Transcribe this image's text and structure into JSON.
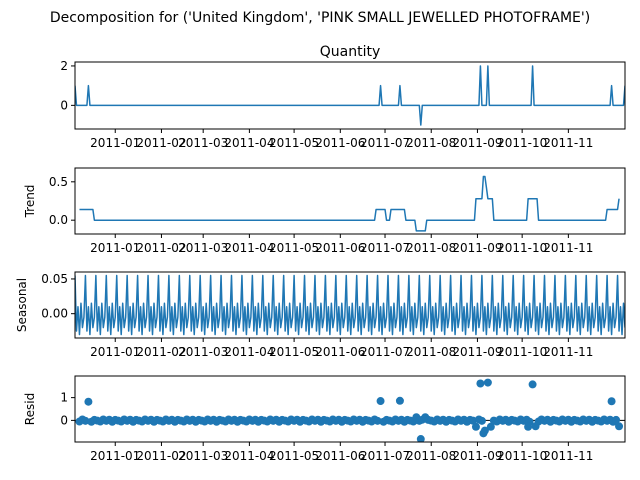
{
  "figure": {
    "suptitle": "Decomposition for ('United Kingdom', 'PINK SMALL JEWELLED PHOTOFRAME')"
  },
  "chart_data": [
    {
      "type": "line",
      "panel": "observed",
      "title": "Quantity",
      "xlabel": "",
      "ylabel": "",
      "x_range": [
        "2010-12-05",
        "2011-12-09"
      ],
      "x_ticks": [
        "2011-01",
        "2011-02",
        "2011-03",
        "2011-04",
        "2011-05",
        "2011-06",
        "2011-07",
        "2011-08",
        "2011-09",
        "2011-10",
        "2011-11"
      ],
      "ylim": [
        -1.2,
        2.2
      ],
      "y_ticks": [
        "0",
        "2"
      ],
      "points": [
        {
          "x": "2010-12-05",
          "y": 1
        },
        {
          "x": "2010-12-06",
          "y": 0
        },
        {
          "x": "2010-12-13",
          "y": 0
        },
        {
          "x": "2010-12-14",
          "y": 1
        },
        {
          "x": "2010-12-15",
          "y": 0
        },
        {
          "x": "2011-06-27",
          "y": 0
        },
        {
          "x": "2011-06-28",
          "y": 1
        },
        {
          "x": "2011-06-29",
          "y": 0
        },
        {
          "x": "2011-07-10",
          "y": 0
        },
        {
          "x": "2011-07-11",
          "y": 1
        },
        {
          "x": "2011-07-12",
          "y": 0
        },
        {
          "x": "2011-07-24",
          "y": 0
        },
        {
          "x": "2011-07-25",
          "y": -1
        },
        {
          "x": "2011-07-26",
          "y": 0
        },
        {
          "x": "2011-09-02",
          "y": 0
        },
        {
          "x": "2011-09-03",
          "y": 2
        },
        {
          "x": "2011-09-04",
          "y": 0
        },
        {
          "x": "2011-09-07",
          "y": 0
        },
        {
          "x": "2011-09-08",
          "y": 2
        },
        {
          "x": "2011-09-09",
          "y": 0
        },
        {
          "x": "2011-10-07",
          "y": 0
        },
        {
          "x": "2011-10-08",
          "y": 2
        },
        {
          "x": "2011-10-09",
          "y": 0
        },
        {
          "x": "2011-11-29",
          "y": 0
        },
        {
          "x": "2011-11-30",
          "y": 1
        },
        {
          "x": "2011-12-01",
          "y": 0
        },
        {
          "x": "2011-12-08",
          "y": 0
        },
        {
          "x": "2011-12-09",
          "y": 1
        }
      ]
    },
    {
      "type": "line",
      "panel": "trend",
      "title": "",
      "xlabel": "",
      "ylabel": "Trend",
      "x_range": [
        "2010-12-05",
        "2011-12-09"
      ],
      "x_ticks": [
        "2011-01",
        "2011-02",
        "2011-03",
        "2011-04",
        "2011-05",
        "2011-06",
        "2011-07",
        "2011-08",
        "2011-09",
        "2011-10",
        "2011-11"
      ],
      "ylim": [
        -0.18,
        0.68
      ],
      "y_ticks": [
        "0.0",
        "0.5"
      ],
      "points": [
        {
          "x": "2010-12-08",
          "y": 0.14
        },
        {
          "x": "2010-12-17",
          "y": 0.14
        },
        {
          "x": "2010-12-18",
          "y": 0
        },
        {
          "x": "2011-06-24",
          "y": 0
        },
        {
          "x": "2011-06-25",
          "y": 0.14
        },
        {
          "x": "2011-07-01",
          "y": 0.14
        },
        {
          "x": "2011-07-02",
          "y": 0
        },
        {
          "x": "2011-07-04",
          "y": 0
        },
        {
          "x": "2011-07-05",
          "y": 0.14
        },
        {
          "x": "2011-07-14",
          "y": 0.14
        },
        {
          "x": "2011-07-15",
          "y": 0
        },
        {
          "x": "2011-07-21",
          "y": 0
        },
        {
          "x": "2011-07-22",
          "y": -0.14
        },
        {
          "x": "2011-07-28",
          "y": -0.14
        },
        {
          "x": "2011-07-29",
          "y": 0
        },
        {
          "x": "2011-08-30",
          "y": 0
        },
        {
          "x": "2011-08-31",
          "y": 0.28
        },
        {
          "x": "2011-09-04",
          "y": 0.28
        },
        {
          "x": "2011-09-05",
          "y": 0.57
        },
        {
          "x": "2011-09-06",
          "y": 0.57
        },
        {
          "x": "2011-09-07",
          "y": 0.43
        },
        {
          "x": "2011-09-08",
          "y": 0.28
        },
        {
          "x": "2011-09-11",
          "y": 0.28
        },
        {
          "x": "2011-09-12",
          "y": 0
        },
        {
          "x": "2011-10-04",
          "y": 0
        },
        {
          "x": "2011-10-05",
          "y": 0.28
        },
        {
          "x": "2011-10-11",
          "y": 0.28
        },
        {
          "x": "2011-10-12",
          "y": 0
        },
        {
          "x": "2011-11-26",
          "y": 0
        },
        {
          "x": "2011-11-27",
          "y": 0.14
        },
        {
          "x": "2011-12-04",
          "y": 0.14
        },
        {
          "x": "2011-12-05",
          "y": 0.28
        }
      ]
    },
    {
      "type": "line",
      "panel": "seasonal",
      "title": "",
      "xlabel": "",
      "ylabel": "Seasonal",
      "x_range": [
        "2010-12-05",
        "2011-12-09"
      ],
      "x_ticks": [
        "2011-01",
        "2011-02",
        "2011-03",
        "2011-04",
        "2011-05",
        "2011-06",
        "2011-07",
        "2011-08",
        "2011-09",
        "2011-10",
        "2011-11"
      ],
      "ylim": [
        -0.035,
        0.06
      ],
      "y_ticks": [
        "0.00",
        "0.05"
      ],
      "period_days": 7,
      "start": "2010-12-05",
      "end": "2011-12-09",
      "cycle_values": [
        0.055,
        -0.025,
        0.01,
        -0.03,
        0.015,
        -0.02,
        -0.005
      ]
    },
    {
      "type": "scatter",
      "panel": "resid",
      "title": "",
      "xlabel": "",
      "ylabel": "Resid",
      "x_range": [
        "2010-12-05",
        "2011-12-09"
      ],
      "x_ticks": [
        "2011-01",
        "2011-02",
        "2011-03",
        "2011-04",
        "2011-05",
        "2011-06",
        "2011-07",
        "2011-08",
        "2011-09",
        "2011-10",
        "2011-11"
      ],
      "ylim": [
        -0.95,
        1.95
      ],
      "y_ticks": [
        "0",
        "1"
      ],
      "baseline": 0,
      "start": "2010-12-08",
      "end": "2011-12-06",
      "spacing_days": 2,
      "base_pattern": [
        -0.05,
        0.04,
        -0.02,
        0.03,
        -0.06,
        0.02,
        -0.01
      ],
      "outliers": [
        {
          "x": "2010-12-14",
          "y": 0.82
        },
        {
          "x": "2011-06-28",
          "y": 0.85
        },
        {
          "x": "2011-07-11",
          "y": 0.86
        },
        {
          "x": "2011-07-25",
          "y": -0.82
        },
        {
          "x": "2011-07-22",
          "y": 0.14
        },
        {
          "x": "2011-07-28",
          "y": 0.14
        },
        {
          "x": "2011-08-31",
          "y": -0.28
        },
        {
          "x": "2011-09-03",
          "y": 1.62
        },
        {
          "x": "2011-09-05",
          "y": -0.57
        },
        {
          "x": "2011-09-06",
          "y": -0.45
        },
        {
          "x": "2011-09-08",
          "y": 1.66
        },
        {
          "x": "2011-09-10",
          "y": -0.28
        },
        {
          "x": "2011-10-05",
          "y": -0.28
        },
        {
          "x": "2011-10-08",
          "y": 1.58
        },
        {
          "x": "2011-10-10",
          "y": -0.26
        },
        {
          "x": "2011-11-30",
          "y": 0.84
        },
        {
          "x": "2011-12-05",
          "y": -0.26
        }
      ]
    }
  ]
}
